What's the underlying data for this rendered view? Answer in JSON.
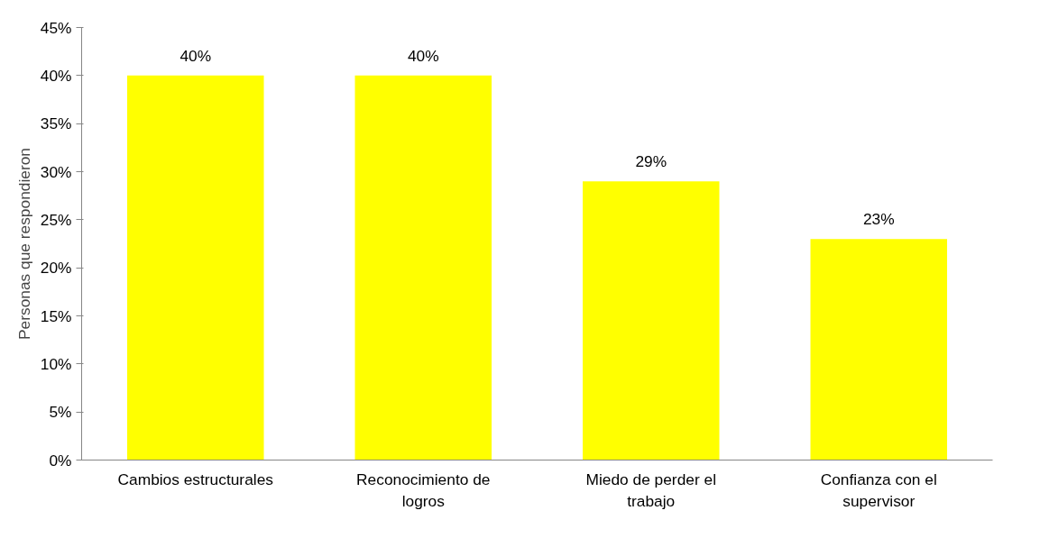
{
  "chart_data": {
    "type": "bar",
    "ylabel": "Personas que respondieron",
    "categories": [
      "Cambios estructurales",
      "Reconocimiento de logros",
      "Miedo de perder el trabajo",
      "Confianza con el supervisor"
    ],
    "values": [
      40,
      40,
      29,
      23
    ],
    "color": "#ffff00",
    "value_labels": [
      "40%",
      "40%",
      "29%",
      "23%"
    ],
    "ylim": [
      0,
      45
    ],
    "yticks": [
      {
        "value": 0,
        "label": "0%"
      },
      {
        "value": 5,
        "label": "5%"
      },
      {
        "value": 10,
        "label": "10%"
      },
      {
        "value": 15,
        "label": "15%"
      },
      {
        "value": 20,
        "label": "20%"
      },
      {
        "value": 25,
        "label": "25%"
      },
      {
        "value": 30,
        "label": "30%"
      },
      {
        "value": 35,
        "label": "35%"
      },
      {
        "value": 40,
        "label": "40%"
      },
      {
        "value": 45,
        "label": "45%"
      }
    ],
    "grid": false
  }
}
